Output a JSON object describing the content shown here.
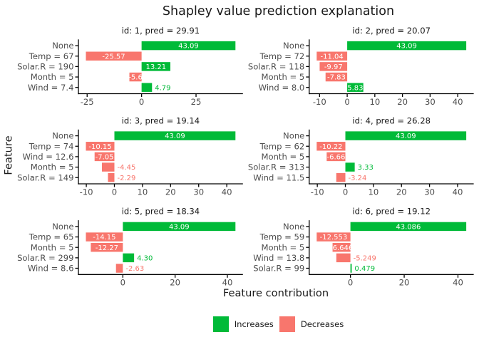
{
  "chart_data": {
    "type": "bar",
    "orientation": "horizontal",
    "title": "Shapley value prediction explanation",
    "xlabel": "Feature contribution",
    "ylabel": "Feature",
    "grid": false,
    "facets": "2 columns x 3 rows",
    "colors": {
      "increase": "#00BA38",
      "decrease": "#F8766D",
      "axis_line": "#000000",
      "axis_text": "#4d4d4d",
      "strip_text": "#1a1a1a",
      "inside_label": "#ffffff"
    },
    "legend": {
      "position": "bottom",
      "entries": [
        {
          "label": "Increases",
          "color": "#00BA38"
        },
        {
          "label": "Decreases",
          "color": "#F8766D"
        }
      ]
    },
    "panels": [
      {
        "title": "id: 1, pred = 29.91",
        "xticks": [
          -25,
          0,
          25
        ],
        "bars": [
          {
            "category": "None",
            "value": 43.09,
            "label": "43.09",
            "label_inside": true
          },
          {
            "category": "Temp = 67",
            "value": -25.57,
            "label": "-25.57",
            "label_inside": true
          },
          {
            "category": "Solar.R = 190",
            "value": 13.21,
            "label": "13.21",
            "label_inside": true
          },
          {
            "category": "Month = 5",
            "value": -5.6,
            "label": "-5.6",
            "label_inside": true
          },
          {
            "category": "Wind = 7.4",
            "value": 4.79,
            "label": "4.79",
            "label_inside": false
          }
        ]
      },
      {
        "title": "id: 2, pred = 20.07",
        "xticks": [
          -10,
          0,
          10,
          20,
          30,
          40
        ],
        "bars": [
          {
            "category": "None",
            "value": 43.09,
            "label": "43.09",
            "label_inside": true
          },
          {
            "category": "Temp = 72",
            "value": -11.04,
            "label": "-11.04",
            "label_inside": true
          },
          {
            "category": "Solar.R = 118",
            "value": -9.97,
            "label": "-9.97",
            "label_inside": true
          },
          {
            "category": "Month = 5",
            "value": -7.83,
            "label": "-7.83",
            "label_inside": true
          },
          {
            "category": "Wind = 8.0",
            "value": 5.83,
            "label": "5.83",
            "label_inside": true
          }
        ]
      },
      {
        "title": "id: 3, pred = 19.14",
        "xticks": [
          -10,
          0,
          10,
          20,
          30,
          40
        ],
        "bars": [
          {
            "category": "None",
            "value": 43.09,
            "label": "43.09",
            "label_inside": true
          },
          {
            "category": "Temp = 74",
            "value": -10.15,
            "label": "-10.15",
            "label_inside": true
          },
          {
            "category": "Wind = 12.6",
            "value": -7.05,
            "label": "-7.05",
            "label_inside": true
          },
          {
            "category": "Month = 5",
            "value": -4.45,
            "label": "-4.45",
            "label_inside": false
          },
          {
            "category": "Solar.R = 149",
            "value": -2.29,
            "label": "-2.29",
            "label_inside": false
          }
        ]
      },
      {
        "title": "id: 4, pred = 26.28",
        "xticks": [
          -10,
          0,
          10,
          20,
          30,
          40
        ],
        "bars": [
          {
            "category": "None",
            "value": 43.09,
            "label": "43.09",
            "label_inside": true
          },
          {
            "category": "Temp = 62",
            "value": -10.22,
            "label": "-10.22",
            "label_inside": true
          },
          {
            "category": "Month = 5",
            "value": -6.66,
            "label": "-6.66",
            "label_inside": true
          },
          {
            "category": "Solar.R = 313",
            "value": 3.33,
            "label": "3.33",
            "label_inside": false
          },
          {
            "category": "Wind = 11.5",
            "value": -3.24,
            "label": "-3.24",
            "label_inside": false
          }
        ]
      },
      {
        "title": "id: 5, pred = 18.34",
        "xticks": [
          0,
          20,
          40
        ],
        "bars": [
          {
            "category": "None",
            "value": 43.09,
            "label": "43.09",
            "label_inside": true
          },
          {
            "category": "Temp = 65",
            "value": -14.15,
            "label": "-14.15",
            "label_inside": true
          },
          {
            "category": "Month = 5",
            "value": -12.27,
            "label": "-12.27",
            "label_inside": true
          },
          {
            "category": "Solar.R = 299",
            "value": 4.3,
            "label": "4.30",
            "label_inside": false
          },
          {
            "category": "Wind = 8.6",
            "value": -2.63,
            "label": "-2.63",
            "label_inside": false
          }
        ]
      },
      {
        "title": "id: 6, pred = 19.12",
        "xticks": [
          0,
          20,
          40
        ],
        "bars": [
          {
            "category": "None",
            "value": 43.086,
            "label": "43.086",
            "label_inside": true
          },
          {
            "category": "Temp = 59",
            "value": -12.553,
            "label": "-12.553",
            "label_inside": true
          },
          {
            "category": "Month = 5",
            "value": -6.646,
            "label": "-6.646",
            "label_inside": true
          },
          {
            "category": "Wind = 13.8",
            "value": -5.249,
            "label": "-5.249",
            "label_inside": false
          },
          {
            "category": "Solar.R = 99",
            "value": 0.479,
            "label": "0.479",
            "label_inside": false
          }
        ]
      }
    ]
  }
}
